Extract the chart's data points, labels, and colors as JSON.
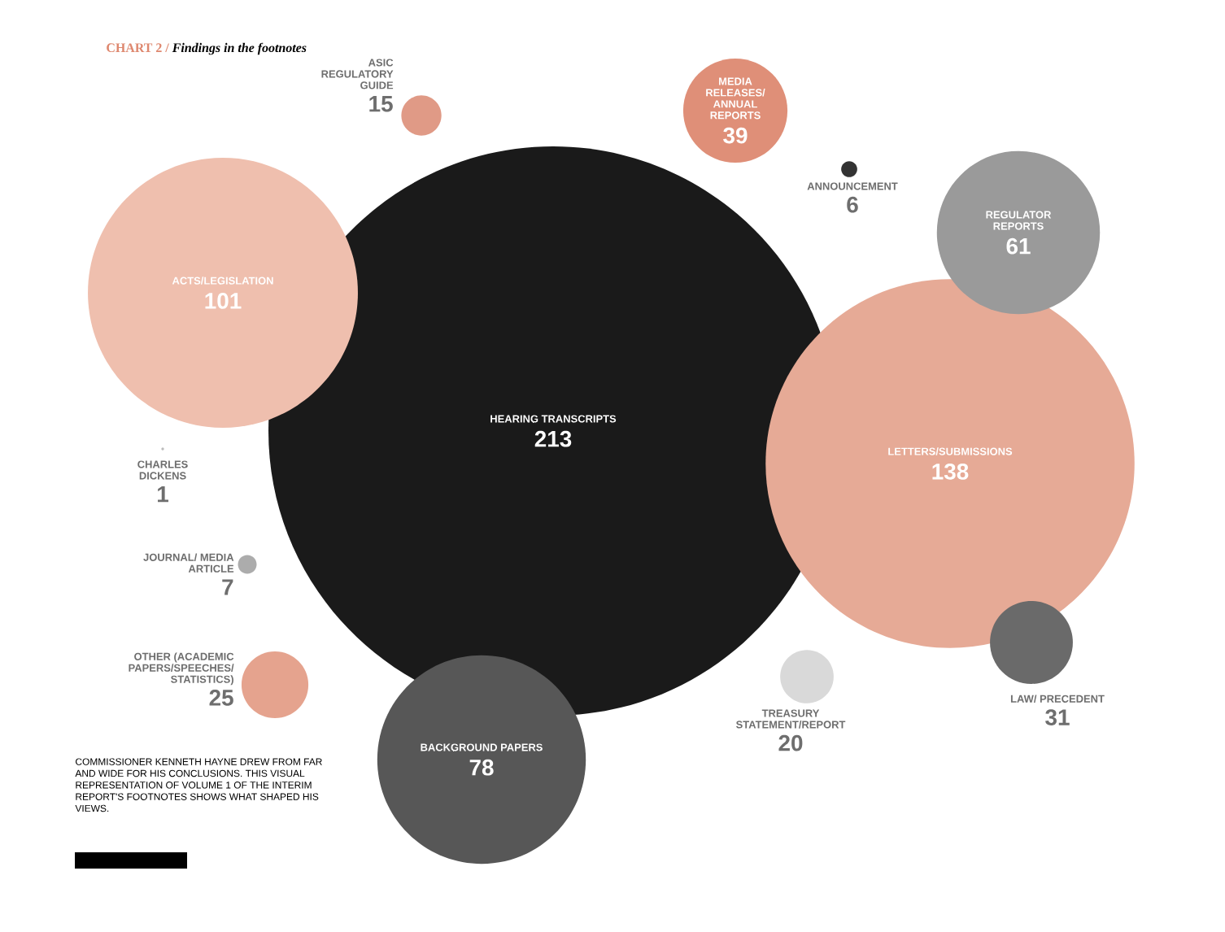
{
  "chart_data": {
    "type": "other",
    "title": "CHART 2 /",
    "subtitle": "Findings in the footnotes",
    "categories": [
      "HEARING TRANSCRIPTS",
      "ACTS/LEGISLATION",
      "LETTERS/SUBMISSIONS",
      "REGULATOR REPORTS",
      "MEDIA RELEASES/ ANNUAL REPORTS",
      "ASIC REGULATORY GUIDE",
      "ANNOUNCEMENT",
      "CHARLES DICKENS",
      "JOURNAL/ MEDIA ARTICLE",
      "OTHER (ACADEMIC PAPERS/SPEECHES/ STATISTICS)",
      "BACKGROUND PAPERS",
      "TREASURY STATEMENT/REPORT",
      "LAW/ PRECEDENT"
    ],
    "values": [
      213,
      101,
      138,
      61,
      39,
      15,
      6,
      1,
      7,
      25,
      78,
      20,
      31
    ],
    "colors": [
      "#1a1a1a",
      "#efbfae",
      "#e6aa96",
      "#9a9a9a",
      "#df8f78",
      "#e09a86",
      "#333333",
      "#bbbbbb",
      "#acacac",
      "#e5a38e",
      "#575757",
      "#d9d9d9",
      "#6a6a6a"
    ],
    "data_labels": true,
    "annotations": [
      "COMMISSIONER KENNETH HAYNE DREW FROM FAR AND WIDE FOR HIS CONCLUSIONS. THIS VISUAL REPRESENTATION OF VOLUME 1 OF THE INTERIM REPORT'S FOOTNOTES SHOWS WHAT SHAPED HIS VIEWS."
    ]
  }
}
